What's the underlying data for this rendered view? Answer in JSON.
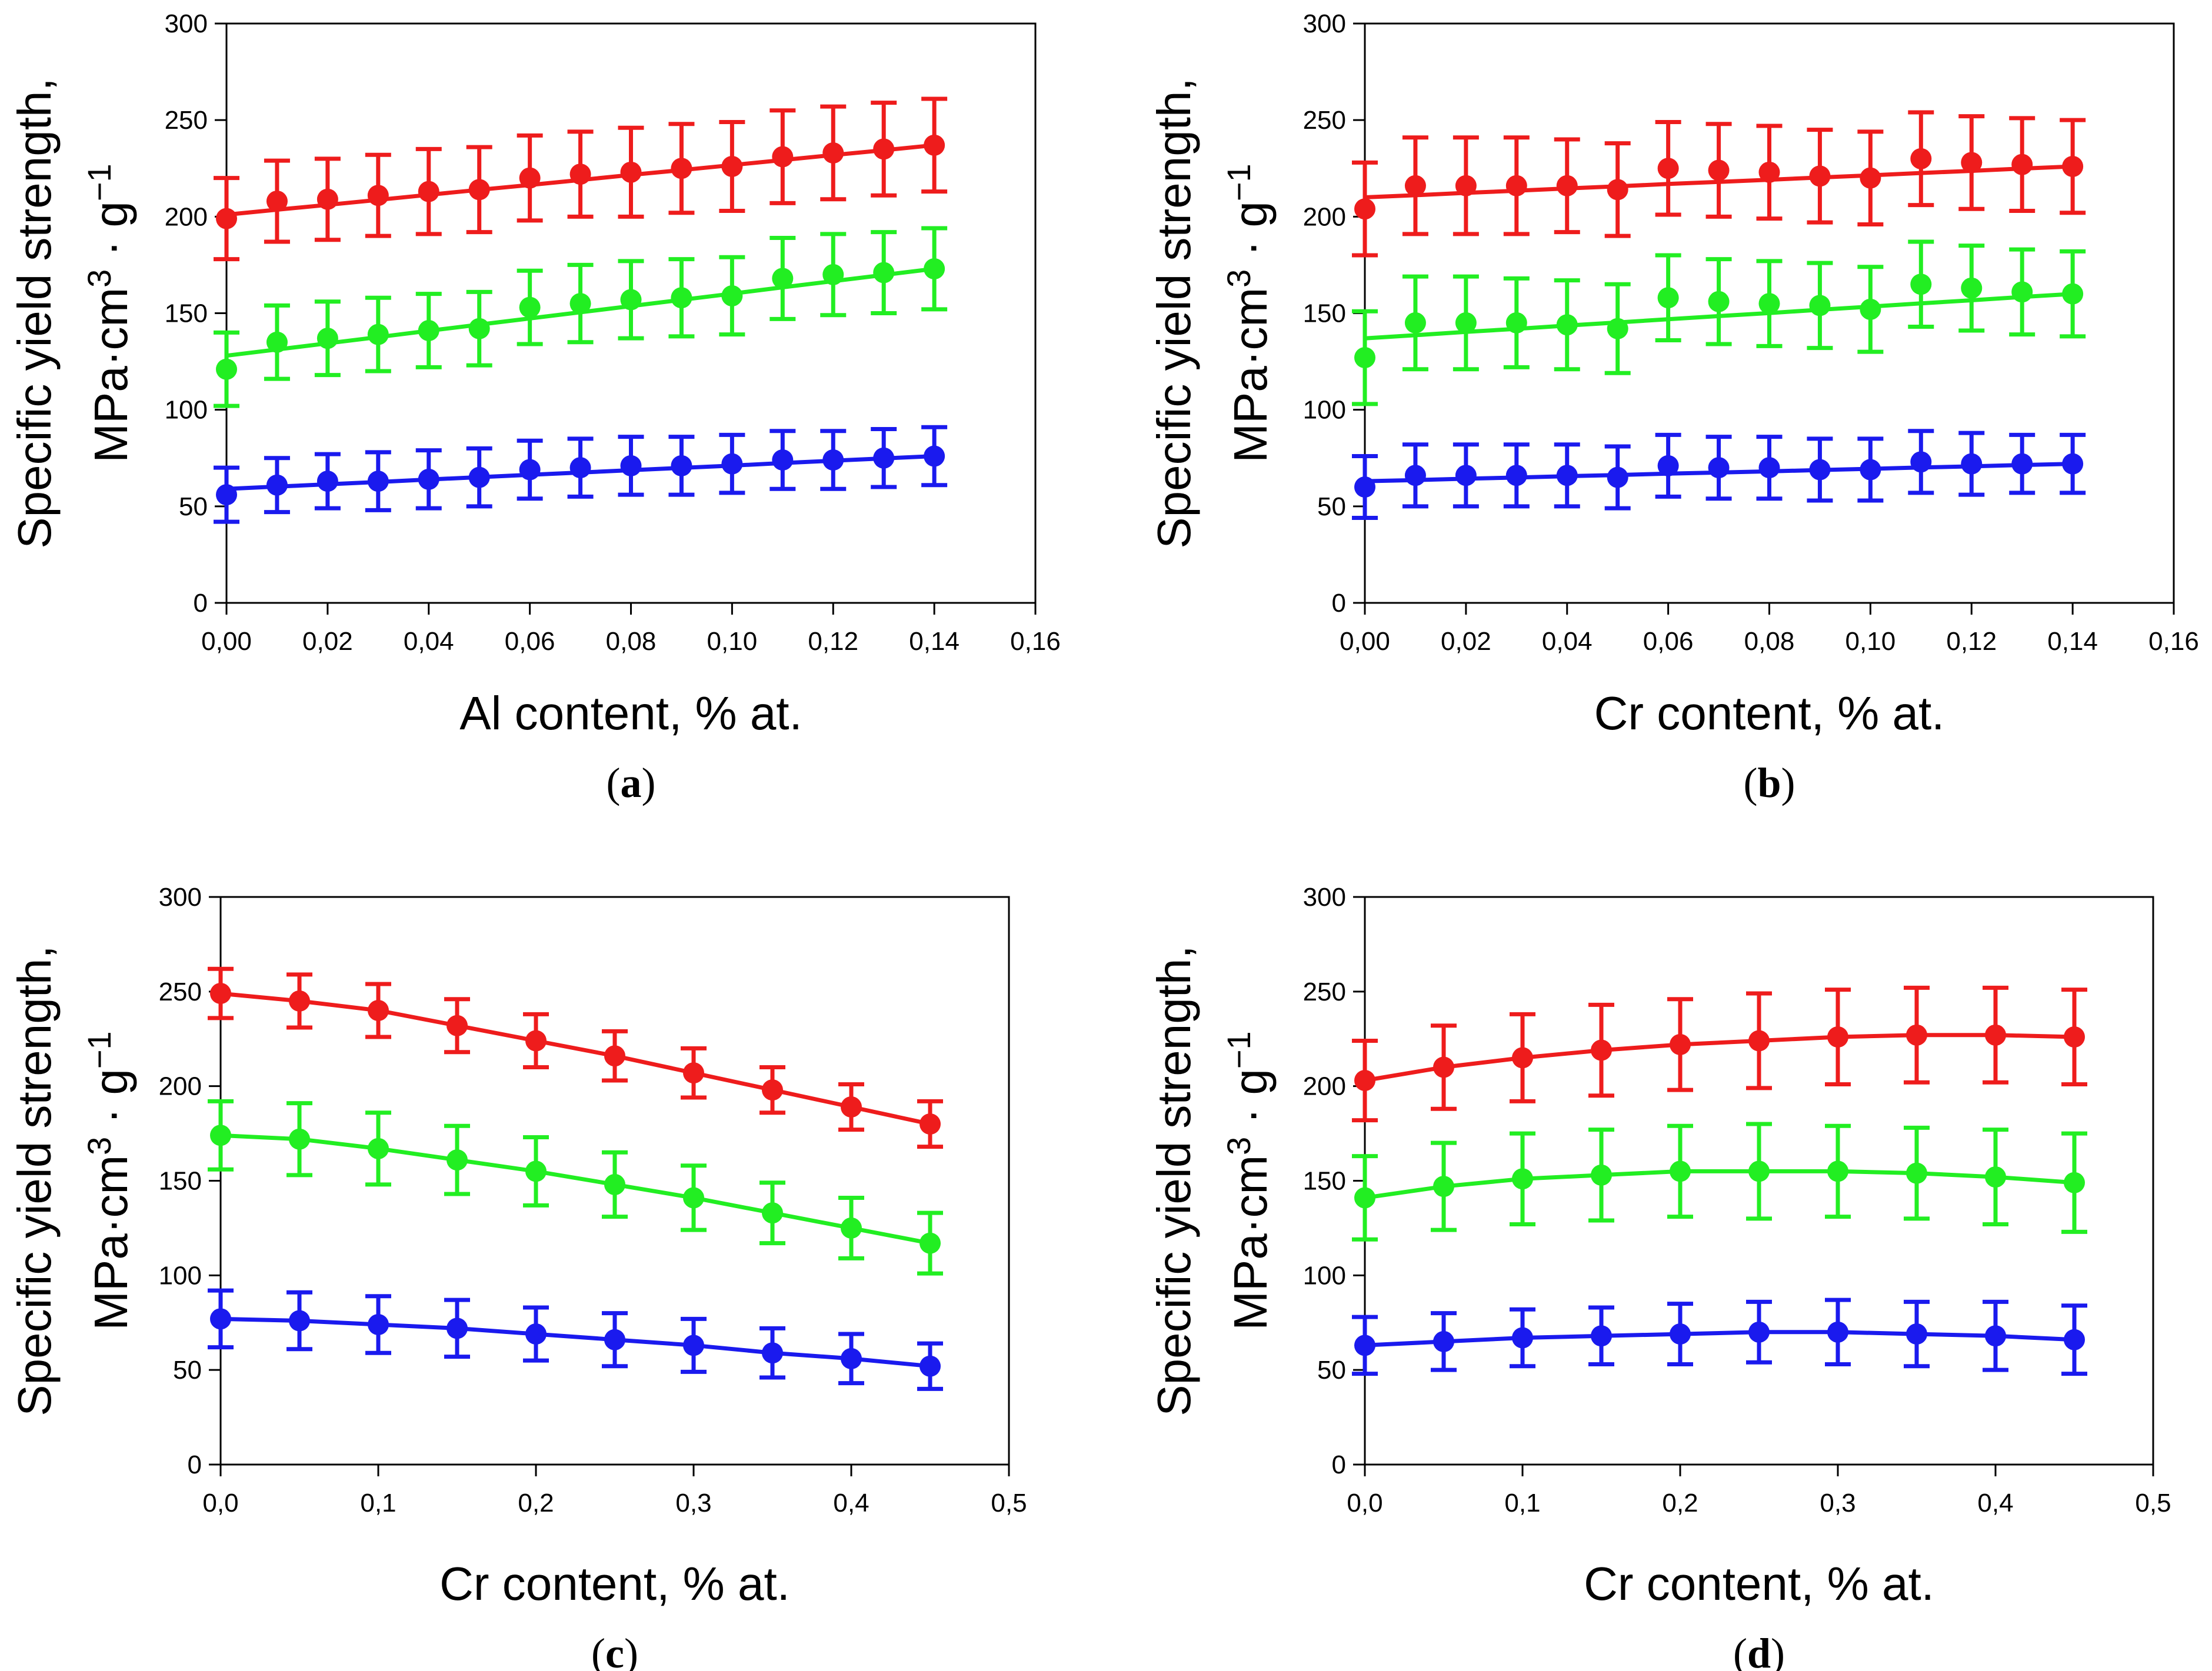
{
  "chart_data": [
    {
      "type": "line",
      "panel_label": "a",
      "xlabel": "Al content, % at.",
      "ylabel_line1": "Specific yield strength,",
      "ylabel_line2": {
        "base": "MPa·cm",
        "sup1": "3",
        "mid": " · g",
        "sup2": "−1"
      },
      "xlim": [
        0,
        0.16
      ],
      "ylim": [
        0,
        300
      ],
      "xticks": [
        0.0,
        0.02,
        0.04,
        0.06,
        0.08,
        0.1,
        0.12,
        0.14,
        0.16
      ],
      "xtick_labels": [
        "0,00",
        "0,02",
        "0,04",
        "0,06",
        "0,08",
        "0,10",
        "0,12",
        "0,14",
        "0,16"
      ],
      "yticks": [
        0,
        50,
        100,
        150,
        200,
        250,
        300
      ],
      "ytick_labels": [
        "0",
        "50",
        "100",
        "150",
        "200",
        "250",
        "300"
      ],
      "x": [
        0.0,
        0.01,
        0.02,
        0.03,
        0.04,
        0.05,
        0.06,
        0.07,
        0.08,
        0.09,
        0.1,
        0.11,
        0.12,
        0.13,
        0.14
      ],
      "series": [
        {
          "name": "red",
          "color": "#ee1c1c",
          "values": [
            199,
            208,
            209,
            211,
            213,
            214,
            220,
            222,
            223,
            225,
            226,
            231,
            233,
            235,
            237
          ],
          "fit": [
            201,
            203.6,
            206.1,
            208.7,
            211.3,
            213.9,
            216.4,
            219,
            221.6,
            224.1,
            226.7,
            229.3,
            231.9,
            234.4,
            237
          ],
          "err": [
            21,
            21,
            21,
            21,
            22,
            22,
            22,
            22,
            23,
            23,
            23,
            24,
            24,
            24,
            24
          ]
        },
        {
          "name": "green",
          "color": "#22ee22",
          "values": [
            121,
            135,
            137,
            139,
            141,
            142,
            153,
            155,
            157,
            158,
            159,
            168,
            170,
            171,
            173
          ],
          "fit": [
            128,
            131.2,
            134.4,
            137.6,
            140.9,
            144.1,
            147.3,
            150.5,
            153.7,
            156.9,
            160.1,
            163.4,
            166.6,
            169.8,
            173
          ],
          "err": [
            19,
            19,
            19,
            19,
            19,
            19,
            19,
            20,
            20,
            20,
            20,
            21,
            21,
            21,
            21
          ]
        },
        {
          "name": "blue",
          "color": "#1a1aee",
          "values": [
            56,
            61,
            63,
            63,
            64,
            65,
            69,
            70,
            71,
            71,
            72,
            74,
            74,
            75,
            76
          ],
          "fit": [
            59,
            60.2,
            61.4,
            62.6,
            63.9,
            65.1,
            66.3,
            67.5,
            68.7,
            69.9,
            71.1,
            72.4,
            73.6,
            74.8,
            76
          ],
          "err": [
            14,
            14,
            14,
            15,
            15,
            15,
            15,
            15,
            15,
            15,
            15,
            15,
            15,
            15,
            15
          ]
        }
      ]
    },
    {
      "type": "line",
      "panel_label": "b",
      "xlabel": "Cr content, % at.",
      "ylabel_line1": "Specific yield strength,",
      "ylabel_line2": {
        "base": "MPa·cm",
        "sup1": "3",
        "mid": " · g",
        "sup2": "−1"
      },
      "xlim": [
        0,
        0.16
      ],
      "ylim": [
        0,
        300
      ],
      "xticks": [
        0.0,
        0.02,
        0.04,
        0.06,
        0.08,
        0.1,
        0.12,
        0.14,
        0.16
      ],
      "xtick_labels": [
        "0,00",
        "0,02",
        "0,04",
        "0,06",
        "0,08",
        "0,10",
        "0,12",
        "0,14",
        "0,16"
      ],
      "yticks": [
        0,
        50,
        100,
        150,
        200,
        250,
        300
      ],
      "ytick_labels": [
        "0",
        "50",
        "100",
        "150",
        "200",
        "250",
        "300"
      ],
      "x": [
        0.0,
        0.01,
        0.02,
        0.03,
        0.04,
        0.05,
        0.06,
        0.07,
        0.08,
        0.09,
        0.1,
        0.11,
        0.12,
        0.13,
        0.14
      ],
      "series": [
        {
          "name": "red",
          "color": "#ee1c1c",
          "values": [
            204,
            216,
            216,
            216,
            216,
            214,
            225,
            224,
            223,
            221,
            220,
            230,
            228,
            227,
            226
          ],
          "fit": [
            210,
            211.1,
            212.3,
            213.4,
            214.6,
            215.7,
            216.9,
            218,
            219.1,
            220.3,
            221.4,
            222.6,
            223.7,
            224.9,
            226
          ],
          "err": [
            24,
            25,
            25,
            25,
            24,
            24,
            24,
            24,
            24,
            24,
            24,
            24,
            24,
            24,
            24
          ]
        },
        {
          "name": "green",
          "color": "#22ee22",
          "values": [
            127,
            145,
            145,
            145,
            144,
            142,
            158,
            156,
            155,
            154,
            152,
            165,
            163,
            161,
            160
          ],
          "fit": [
            137,
            138.6,
            140.3,
            141.9,
            143.6,
            145.2,
            146.9,
            148.5,
            150.1,
            151.8,
            153.4,
            155.1,
            156.7,
            158.4,
            160
          ],
          "err": [
            24,
            24,
            24,
            23,
            23,
            23,
            22,
            22,
            22,
            22,
            22,
            22,
            22,
            22,
            22
          ]
        },
        {
          "name": "blue",
          "color": "#1a1aee",
          "values": [
            60,
            66,
            66,
            66,
            66,
            65,
            71,
            70,
            70,
            69,
            69,
            73,
            72,
            72,
            72
          ],
          "fit": [
            63,
            63.6,
            64.3,
            64.9,
            65.6,
            66.2,
            66.9,
            67.5,
            68.1,
            68.8,
            69.4,
            70.1,
            70.7,
            71.4,
            72
          ],
          "err": [
            16,
            16,
            16,
            16,
            16,
            16,
            16,
            16,
            16,
            16,
            16,
            16,
            16,
            15,
            15
          ]
        }
      ]
    },
    {
      "type": "line",
      "panel_label": "c",
      "xlabel": "Cr content, % at.",
      "ylabel_line1": "Specific yield strength,",
      "ylabel_line2": {
        "base": "MPa·cm",
        "sup1": "3",
        "mid": " · g",
        "sup2": "−1"
      },
      "xlim": [
        0,
        0.5
      ],
      "ylim": [
        0,
        300
      ],
      "xticks": [
        0.0,
        0.1,
        0.2,
        0.3,
        0.4,
        0.5
      ],
      "xtick_labels": [
        "0,0",
        "0,1",
        "0,2",
        "0,3",
        "0,4",
        "0,5"
      ],
      "yticks": [
        0,
        50,
        100,
        150,
        200,
        250,
        300
      ],
      "ytick_labels": [
        "0",
        "50",
        "100",
        "150",
        "200",
        "250",
        "300"
      ],
      "x": [
        0.0,
        0.05,
        0.1,
        0.15,
        0.2,
        0.25,
        0.3,
        0.35,
        0.4,
        0.45
      ],
      "series": [
        {
          "name": "red",
          "color": "#ee1c1c",
          "values": [
            249,
            245,
            240,
            232,
            224,
            216,
            207,
            198,
            189,
            180
          ],
          "fit": [
            249,
            245,
            240,
            232,
            224,
            216,
            207,
            198,
            189,
            180
          ],
          "err": [
            13,
            14,
            14,
            14,
            14,
            13,
            13,
            12,
            12,
            12
          ]
        },
        {
          "name": "green",
          "color": "#22ee22",
          "values": [
            174,
            172,
            167,
            161,
            155,
            148,
            141,
            133,
            125,
            117
          ],
          "fit": [
            174,
            172,
            167,
            161,
            155,
            148,
            141,
            133,
            125,
            117
          ],
          "err": [
            18,
            19,
            19,
            18,
            18,
            17,
            17,
            16,
            16,
            16
          ]
        },
        {
          "name": "blue",
          "color": "#1a1aee",
          "values": [
            77,
            76,
            74,
            72,
            69,
            66,
            63,
            59,
            56,
            52
          ],
          "fit": [
            77,
            76,
            74,
            72,
            69,
            66,
            63,
            59,
            56,
            52
          ],
          "err": [
            15,
            15,
            15,
            15,
            14,
            14,
            14,
            13,
            13,
            12
          ]
        }
      ]
    },
    {
      "type": "line",
      "panel_label": "d",
      "xlabel": "Cr content, % at.",
      "ylabel_line1": "Specific yield strength,",
      "ylabel_line2": {
        "base": "MPa·cm",
        "sup1": "3",
        "mid": " · g",
        "sup2": "−1"
      },
      "xlim": [
        0,
        0.5
      ],
      "ylim": [
        0,
        300
      ],
      "xticks": [
        0.0,
        0.1,
        0.2,
        0.3,
        0.4,
        0.5
      ],
      "xtick_labels": [
        "0,0",
        "0,1",
        "0,2",
        "0,3",
        "0,4",
        "0,5"
      ],
      "yticks": [
        0,
        50,
        100,
        150,
        200,
        250,
        300
      ],
      "ytick_labels": [
        "0",
        "50",
        "100",
        "150",
        "200",
        "250",
        "300"
      ],
      "x": [
        0.0,
        0.05,
        0.1,
        0.15,
        0.2,
        0.25,
        0.3,
        0.35,
        0.4,
        0.45
      ],
      "series": [
        {
          "name": "red",
          "color": "#ee1c1c",
          "values": [
            203,
            210,
            215,
            219,
            222,
            224,
            226,
            227,
            227,
            226
          ],
          "fit": [
            203,
            210,
            215,
            219,
            222,
            224,
            226,
            227,
            227,
            226
          ],
          "err": [
            21,
            22,
            23,
            24,
            24,
            25,
            25,
            25,
            25,
            25
          ]
        },
        {
          "name": "green",
          "color": "#22ee22",
          "values": [
            141,
            147,
            151,
            153,
            155,
            155,
            155,
            154,
            152,
            149
          ],
          "fit": [
            141,
            147,
            151,
            153,
            155,
            155,
            155,
            154,
            152,
            149
          ],
          "err": [
            22,
            23,
            24,
            24,
            24,
            25,
            24,
            24,
            25,
            26
          ]
        },
        {
          "name": "blue",
          "color": "#1a1aee",
          "values": [
            63,
            65,
            67,
            68,
            69,
            70,
            70,
            69,
            68,
            66
          ],
          "fit": [
            63,
            65,
            67,
            68,
            69,
            70,
            70,
            69,
            68,
            66
          ],
          "err": [
            15,
            15,
            15,
            15,
            16,
            16,
            17,
            17,
            18,
            18
          ]
        }
      ]
    }
  ]
}
